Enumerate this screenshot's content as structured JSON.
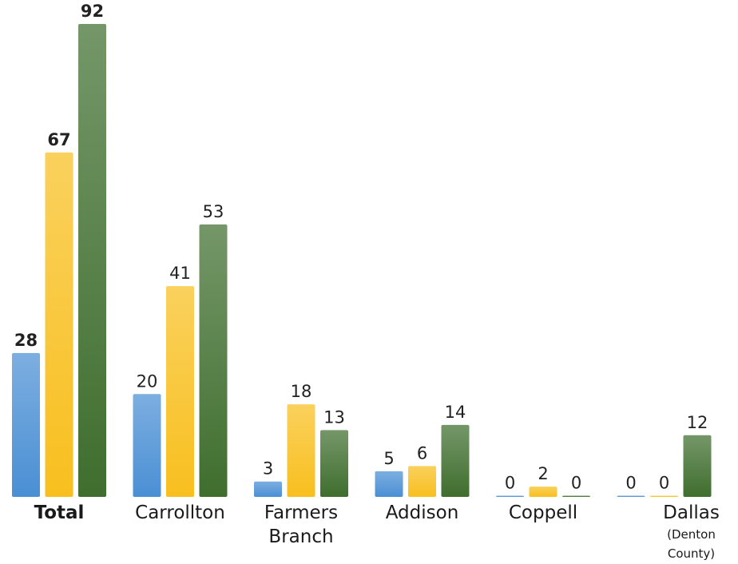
{
  "chart_data": {
    "type": "bar",
    "categories": [
      "Total",
      "Carrollton",
      "Farmers Branch",
      "Addison",
      "Coppell",
      "Dallas"
    ],
    "category_sublabels": [
      null,
      null,
      null,
      null,
      null,
      "(Denton County)"
    ],
    "series": [
      {
        "color": "#4a8fd4",
        "values": [
          28,
          20,
          3,
          5,
          0,
          0
        ]
      },
      {
        "color": "#f8bf1e",
        "values": [
          67,
          41,
          18,
          6,
          2,
          0
        ]
      },
      {
        "color": "#3f6e2e",
        "values": [
          92,
          53,
          13,
          14,
          0,
          12
        ]
      }
    ],
    "ylim": [
      0,
      92
    ],
    "bold_category_index": 0
  }
}
